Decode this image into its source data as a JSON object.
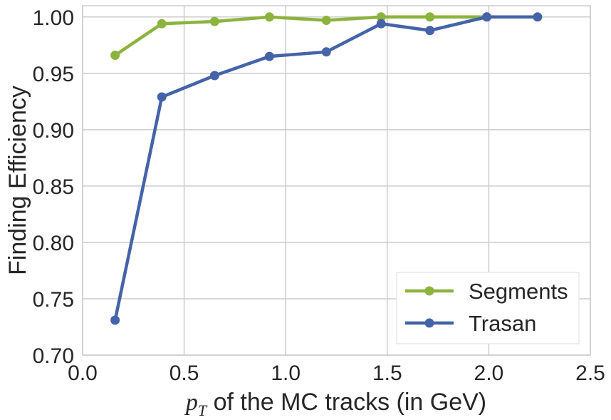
{
  "chart_data": {
    "type": "line",
    "xlabel_math": "p",
    "xlabel_math_sub": "T",
    "xlabel_rest": " of the MC tracks (in GeV)",
    "ylabel": "Finding Efficiency",
    "xlim": [
      0.0,
      2.5
    ],
    "ylim": [
      0.7,
      1.01
    ],
    "xticks": [
      0.0,
      0.5,
      1.0,
      1.5,
      2.0,
      2.5
    ],
    "xtick_labels": [
      "0.0",
      "0.5",
      "1.0",
      "1.5",
      "2.0",
      "2.5"
    ],
    "yticks": [
      0.7,
      0.75,
      0.8,
      0.85,
      0.9,
      0.95,
      1.0
    ],
    "ytick_labels": [
      "0.70",
      "0.75",
      "0.80",
      "0.85",
      "0.90",
      "0.95",
      "1.00"
    ],
    "grid": true,
    "legend_position": "bottom-right",
    "series": [
      {
        "name": "Segments",
        "color": "#8cb33e",
        "x": [
          0.16,
          0.39,
          0.65,
          0.92,
          1.2,
          1.47,
          1.71,
          1.99
        ],
        "y": [
          0.966,
          0.994,
          0.996,
          1.0,
          0.997,
          1.0,
          1.0,
          1.0
        ]
      },
      {
        "name": "Trasan",
        "color": "#4463a8",
        "x": [
          0.16,
          0.39,
          0.65,
          0.92,
          1.2,
          1.47,
          1.71,
          1.99,
          2.24
        ],
        "y": [
          0.731,
          0.929,
          0.948,
          0.965,
          0.969,
          0.994,
          0.988,
          1.0,
          1.0
        ]
      }
    ]
  }
}
